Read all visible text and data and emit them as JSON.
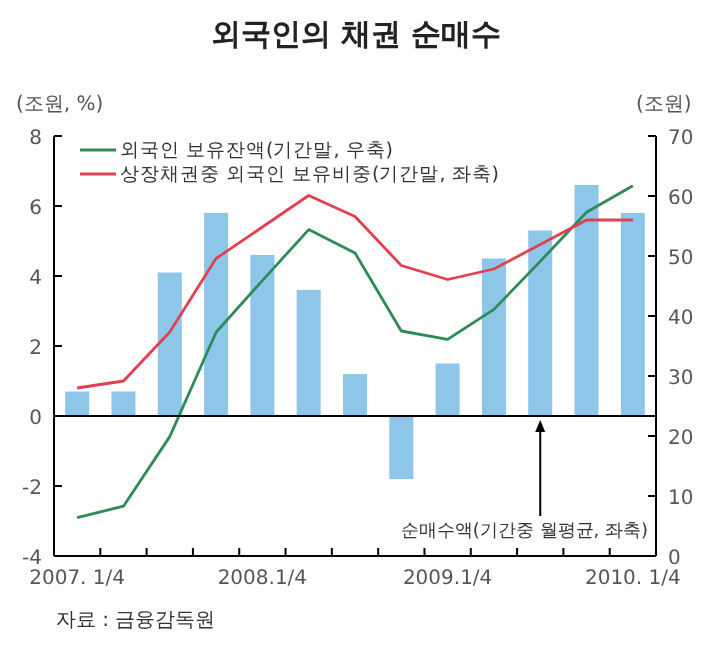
{
  "chart_data": {
    "type": "bar",
    "title": "외국인의 채권 순매수",
    "ylabel": "(조원, %)",
    "y2label": "(조원)",
    "categories": [
      "2007. 1/4",
      null,
      null,
      null,
      "2008.1/4",
      null,
      null,
      null,
      "2009.1/4",
      null,
      null,
      null,
      "2010. 1/4"
    ],
    "ylim": [
      -4,
      8
    ],
    "yticks": [
      -4,
      -2,
      0,
      2,
      4,
      6,
      8
    ],
    "y2lim": [
      0,
      70
    ],
    "y2ticks": [
      0,
      10,
      20,
      30,
      40,
      50,
      60,
      70
    ],
    "legend": "top left",
    "series": [
      {
        "name": "순매수액(기간중 월평균, 좌축)",
        "color": "#8ec6ea",
        "values": [
          0.7,
          0.7,
          4.1,
          5.8,
          4.6,
          3.6,
          1.2,
          -1.8,
          1.5,
          4.5,
          5.3,
          6.6,
          5.8
        ]
      },
      {
        "name": "외국인 보유잔액(기간말, 우축)",
        "type": "line",
        "axis": "y2",
        "color": "#2e8b57",
        "values": [
          6.4,
          8.3,
          19.9,
          37.3,
          45.9,
          54.4,
          50.5,
          37.5,
          36.1,
          41.1,
          49.1,
          57.3,
          61.7
        ]
      },
      {
        "name": "상장채권중 외국인 보유비중(기간말, 좌축)",
        "type": "line",
        "color": "#e0404f",
        "values": [
          0.8,
          1.0,
          2.4,
          4.5,
          5.4,
          6.3,
          5.7,
          4.3,
          3.9,
          4.2,
          4.9,
          5.6,
          5.6
        ]
      }
    ],
    "annotations": [
      "자료 : 금융감독원"
    ]
  }
}
